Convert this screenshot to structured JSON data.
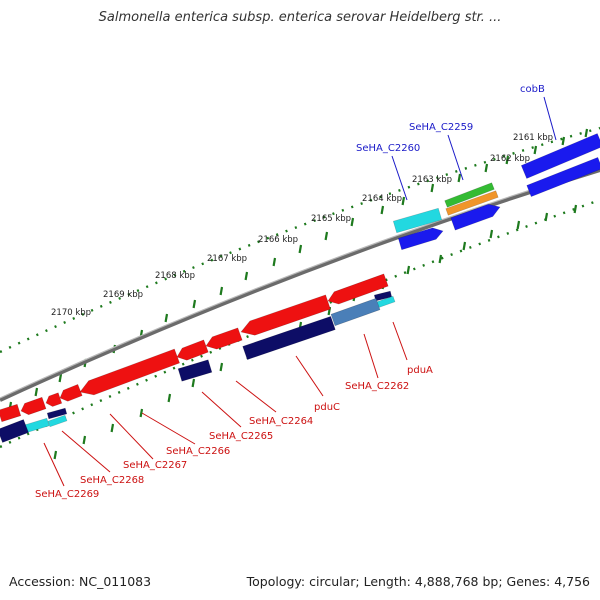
{
  "header": {
    "title": "Salmonella enterica subsp. enterica serovar Heidelberg str. ..."
  },
  "footer": {
    "accession": "Accession: NC_011083",
    "summary": "Topology: circular; Length: 4,888,768 bp; Genes: 4,756"
  },
  "colors": {
    "forward_gene": "#1a1aee",
    "reverse_gene": "#ee1111",
    "dark_navy": "#0d0d66",
    "steel_blue": "#4a7fb8",
    "cyan": "#22d8e0",
    "green": "#33bb33",
    "orange": "#f0952a",
    "backbone": "#7a7a7a",
    "ticks": "#1e7a1e",
    "forward_label": "#1a1ac8",
    "reverse_label": "#cc1111"
  },
  "scale": {
    "unit": "kbp",
    "labels": [
      "2161 kbp",
      "2162 kbp",
      "2163 kbp",
      "2164 kbp",
      "2165 kbp",
      "2166 kbp",
      "2167 kbp",
      "2168 kbp",
      "2169 kbp",
      "2170 kbp"
    ]
  },
  "genes": [
    {
      "label": "cobB",
      "strand": "forward"
    },
    {
      "label": "SeHA_C2259",
      "strand": "forward"
    },
    {
      "label": "SeHA_C2260",
      "strand": "forward"
    },
    {
      "label": "pduA",
      "strand": "reverse"
    },
    {
      "label": "SeHA_C2262",
      "strand": "reverse"
    },
    {
      "label": "pduC",
      "strand": "reverse"
    },
    {
      "label": "SeHA_C2264",
      "strand": "reverse"
    },
    {
      "label": "SeHA_C2265",
      "strand": "reverse"
    },
    {
      "label": "SeHA_C2266",
      "strand": "reverse"
    },
    {
      "label": "SeHA_C2267",
      "strand": "reverse"
    },
    {
      "label": "SeHA_C2268",
      "strand": "reverse"
    },
    {
      "label": "SeHA_C2269",
      "strand": "reverse"
    }
  ]
}
